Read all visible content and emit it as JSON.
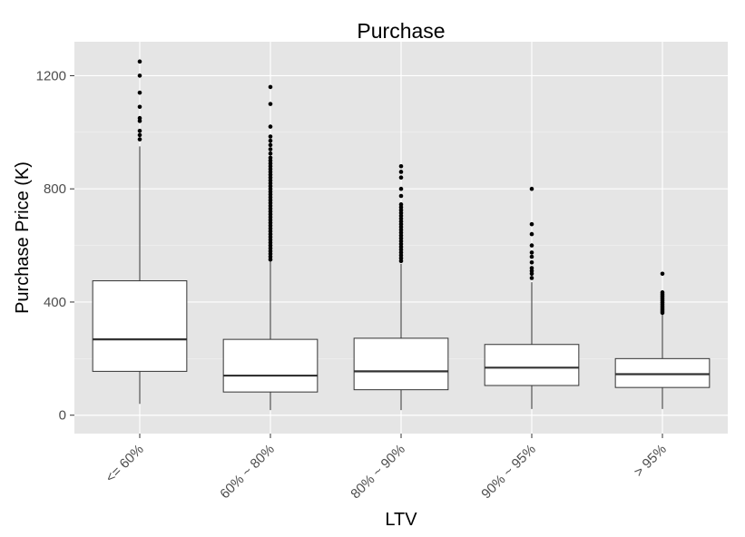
{
  "chart_data": {
    "type": "boxplot",
    "title": "Purchase",
    "xlabel": "LTV",
    "ylabel": "Purchase Price (K)",
    "ylim": [
      -65,
      1320
    ],
    "yticks": [
      0,
      400,
      800,
      1200
    ],
    "ytick_labels": [
      "0",
      "400",
      "800",
      "1200"
    ],
    "grid": true,
    "legend": "none",
    "categories": [
      "<= 60%",
      "60% ~ 80%",
      "80% ~ 90%",
      "90% ~ 95%",
      "> 95%"
    ],
    "boxes": [
      {
        "category": "<= 60%",
        "min": 40,
        "q1": 155,
        "median": 268,
        "q3": 475,
        "max": 950,
        "outliers": [
          975,
          990,
          1005,
          1040,
          1050,
          1090,
          1140,
          1200,
          1250
        ]
      },
      {
        "category": "60% ~ 80%",
        "min": 18,
        "q1": 82,
        "median": 140,
        "q3": 268,
        "max": 545,
        "outliers": [
          550,
          560,
          570,
          580,
          590,
          600,
          610,
          620,
          630,
          640,
          650,
          660,
          670,
          680,
          690,
          700,
          710,
          720,
          730,
          740,
          750,
          760,
          770,
          780,
          790,
          800,
          810,
          820,
          830,
          840,
          850,
          860,
          870,
          880,
          890,
          900,
          910,
          925,
          940,
          955,
          970,
          985,
          1020,
          1100,
          1160
        ]
      },
      {
        "category": "80% ~ 90%",
        "min": 18,
        "q1": 90,
        "median": 155,
        "q3": 272,
        "max": 535,
        "outliers": [
          545,
          555,
          565,
          575,
          585,
          595,
          605,
          615,
          625,
          635,
          645,
          655,
          665,
          675,
          685,
          695,
          705,
          715,
          725,
          735,
          745,
          775,
          800,
          840,
          860,
          880
        ]
      },
      {
        "category": "90% ~ 95%",
        "min": 22,
        "q1": 105,
        "median": 168,
        "q3": 250,
        "max": 470,
        "outliers": [
          485,
          500,
          510,
          520,
          540,
          560,
          575,
          600,
          640,
          675,
          800
        ]
      },
      {
        "category": "> 95%",
        "min": 22,
        "q1": 98,
        "median": 145,
        "q3": 200,
        "max": 355,
        "outliers": [
          362,
          368,
          374,
          380,
          386,
          392,
          398,
          404,
          410,
          416,
          422,
          428,
          434,
          500
        ]
      }
    ]
  }
}
